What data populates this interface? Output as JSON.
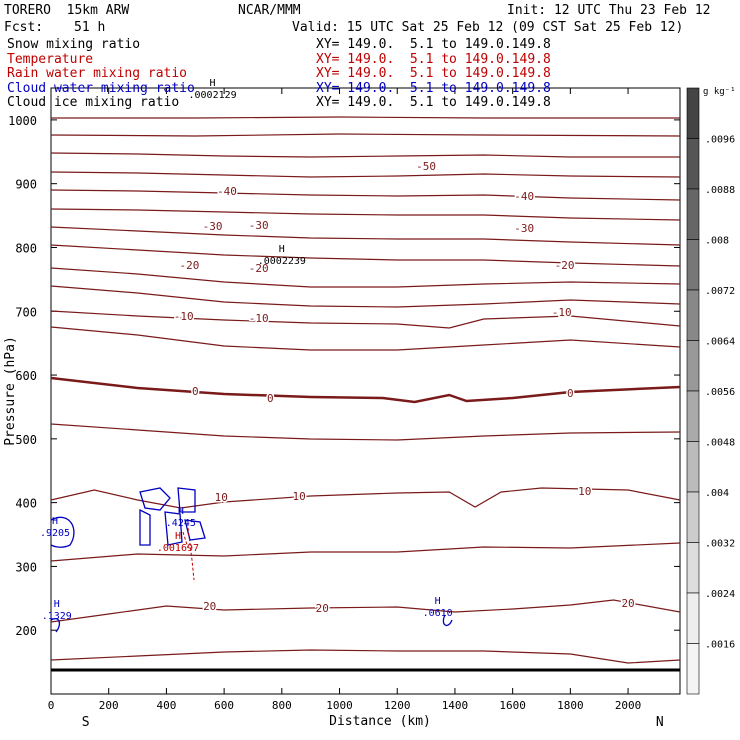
{
  "header": {
    "model": "TORERO  15km ARW",
    "org": "NCAR/MMM",
    "init": "Init: 12 UTC Thu 23 Feb 12",
    "fcst_label": "Fcst:",
    "fcst_value": "51 h",
    "valid": "Valid: 15 UTC Sat 25 Feb 12 (09 CST Sat 25 Feb 12)",
    "fields": [
      {
        "name": "Snow mixing ratio",
        "xy": "XY= 149.0.  5.1 to 149.0.149.8",
        "color": "#000000"
      },
      {
        "name": "Temperature",
        "xy": "XY= 149.0.  5.1 to 149.0.149.8",
        "color": "#c00000"
      },
      {
        "name": "Rain water mixing ratio",
        "xy": "XY= 149.0.  5.1 to 149.0.149.8",
        "color": "#c00000"
      },
      {
        "name": "Cloud water mixing ratio",
        "xy": "XY= 149.0.  5.1 to 149.0.149.8",
        "color": "#0000c0"
      },
      {
        "name": "Cloud ice mixing ratio",
        "xy": "XY= 149.0.  5.1 to 149.0.149.8",
        "color": "#000000"
      }
    ]
  },
  "chart_data": {
    "type": "contour",
    "xlabel": "Distance (km)",
    "ylabel": "Pressure (hPa)",
    "xlim": [
      0,
      2180
    ],
    "ylim": [
      1050,
      100
    ],
    "x_ticks": [
      0,
      200,
      400,
      600,
      800,
      1000,
      1200,
      1400,
      1600,
      1800,
      2000
    ],
    "y_ticks": [
      200,
      300,
      400,
      500,
      600,
      700,
      800,
      900,
      1000
    ],
    "x_end_labels": {
      "left": "S",
      "right": "N"
    },
    "temperature_contours": [
      {
        "value": -60,
        "points": [
          [
            0,
            118
          ],
          [
            500,
            118
          ],
          [
            1000,
            117
          ],
          [
            1500,
            118
          ],
          [
            2180,
            118
          ]
        ]
      },
      {
        "value": -55,
        "points": [
          [
            0,
            135
          ],
          [
            500,
            136
          ],
          [
            1000,
            134
          ],
          [
            1500,
            135
          ],
          [
            2180,
            136
          ]
        ]
      },
      {
        "value": -50,
        "points": [
          [
            0,
            153
          ],
          [
            300,
            154
          ],
          [
            600,
            156
          ],
          [
            900,
            157
          ],
          [
            1200,
            156
          ],
          [
            1500,
            155
          ],
          [
            1800,
            157
          ],
          [
            2180,
            157
          ]
        ]
      },
      {
        "value": -45,
        "points": [
          [
            0,
            172
          ],
          [
            300,
            173
          ],
          [
            600,
            175
          ],
          [
            900,
            177
          ],
          [
            1200,
            176
          ],
          [
            1500,
            174
          ],
          [
            1800,
            176
          ],
          [
            2180,
            177
          ]
        ]
      },
      {
        "value": -40,
        "points": [
          [
            0,
            190
          ],
          [
            300,
            191
          ],
          [
            600,
            193
          ],
          [
            900,
            195
          ],
          [
            1200,
            196
          ],
          [
            1500,
            195
          ],
          [
            1800,
            198
          ],
          [
            2180,
            200
          ]
        ]
      },
      {
        "value": -35,
        "points": [
          [
            0,
            209
          ],
          [
            300,
            210
          ],
          [
            600,
            212
          ],
          [
            900,
            214
          ],
          [
            1200,
            215
          ],
          [
            1500,
            215
          ],
          [
            1800,
            218
          ],
          [
            2180,
            220
          ]
        ]
      },
      {
        "value": -30,
        "points": [
          [
            0,
            227
          ],
          [
            300,
            231
          ],
          [
            600,
            235
          ],
          [
            900,
            238
          ],
          [
            1200,
            239
          ],
          [
            1500,
            239
          ],
          [
            1800,
            242
          ],
          [
            2180,
            245
          ]
        ]
      },
      {
        "value": -25,
        "points": [
          [
            0,
            245
          ],
          [
            300,
            250
          ],
          [
            600,
            255
          ],
          [
            900,
            258
          ],
          [
            1200,
            260
          ],
          [
            1500,
            260
          ],
          [
            1800,
            263
          ],
          [
            2180,
            266
          ]
        ]
      },
      {
        "value": -20,
        "points": [
          [
            0,
            268
          ],
          [
            300,
            274
          ],
          [
            600,
            282
          ],
          [
            900,
            287
          ],
          [
            1200,
            287
          ],
          [
            1500,
            284
          ],
          [
            1800,
            282
          ],
          [
            2180,
            284
          ]
        ]
      },
      {
        "value": -15,
        "points": [
          [
            0,
            286
          ],
          [
            300,
            293
          ],
          [
            600,
            302
          ],
          [
            900,
            306
          ],
          [
            1200,
            307
          ],
          [
            1500,
            304
          ],
          [
            1800,
            300
          ],
          [
            2180,
            304
          ]
        ]
      },
      {
        "value": -10,
        "points": [
          [
            0,
            311
          ],
          [
            300,
            316
          ],
          [
            600,
            320
          ],
          [
            900,
            323
          ],
          [
            1200,
            324
          ],
          [
            1380,
            328
          ],
          [
            1500,
            319
          ],
          [
            1800,
            316
          ],
          [
            2180,
            326
          ]
        ]
      },
      {
        "value": -5,
        "points": [
          [
            0,
            327
          ],
          [
            300,
            335
          ],
          [
            600,
            346
          ],
          [
            900,
            350
          ],
          [
            1200,
            350
          ],
          [
            1500,
            345
          ],
          [
            1800,
            340
          ],
          [
            2180,
            347
          ]
        ]
      },
      {
        "value": 0,
        "points": [
          [
            0,
            378
          ],
          [
            300,
            388
          ],
          [
            600,
            394
          ],
          [
            900,
            397
          ],
          [
            1150,
            398
          ],
          [
            1260,
            402
          ],
          [
            1380,
            395
          ],
          [
            1440,
            401
          ],
          [
            1600,
            398
          ],
          [
            1800,
            392
          ],
          [
            2180,
            387
          ]
        ]
      },
      {
        "value": 5,
        "points": [
          [
            0,
            424
          ],
          [
            300,
            430
          ],
          [
            600,
            436
          ],
          [
            900,
            439
          ],
          [
            1200,
            440
          ],
          [
            1500,
            436
          ],
          [
            1800,
            433
          ],
          [
            2180,
            432
          ]
        ]
      },
      {
        "value": 10,
        "points": [
          [
            0,
            500
          ],
          [
            150,
            490
          ],
          [
            300,
            500
          ],
          [
            450,
            508
          ],
          [
            600,
            502
          ],
          [
            900,
            496
          ],
          [
            1200,
            493
          ],
          [
            1380,
            492
          ],
          [
            1470,
            507
          ],
          [
            1560,
            492
          ],
          [
            1700,
            488
          ],
          [
            2000,
            490
          ],
          [
            2180,
            500
          ]
        ]
      },
      {
        "value": 15,
        "points": [
          [
            0,
            561
          ],
          [
            300,
            554
          ],
          [
            600,
            556
          ],
          [
            900,
            552
          ],
          [
            1200,
            552
          ],
          [
            1500,
            547
          ],
          [
            1800,
            548
          ],
          [
            2180,
            543
          ]
        ]
      },
      {
        "value": 20,
        "points": [
          [
            0,
            622
          ],
          [
            200,
            614
          ],
          [
            400,
            606
          ],
          [
            600,
            610
          ],
          [
            900,
            608
          ],
          [
            1200,
            607
          ],
          [
            1400,
            612
          ],
          [
            1600,
            609
          ],
          [
            1800,
            605
          ],
          [
            1950,
            600
          ],
          [
            2180,
            612
          ]
        ]
      },
      {
        "value": 25,
        "points": [
          [
            0,
            660
          ],
          [
            300,
            656
          ],
          [
            600,
            652
          ],
          [
            900,
            650
          ],
          [
            1200,
            651
          ],
          [
            1500,
            651
          ],
          [
            1800,
            654
          ],
          [
            2000,
            663
          ],
          [
            2180,
            660
          ]
        ]
      }
    ],
    "labeled_contours": [
      {
        "text": "-50",
        "x": 1300,
        "y": 166
      },
      {
        "text": "-40",
        "x": 610,
        "y": 191
      },
      {
        "text": "-40",
        "x": 1640,
        "y": 196
      },
      {
        "text": "-30",
        "x": 560,
        "y": 226
      },
      {
        "text": "-30",
        "x": 720,
        "y": 225
      },
      {
        "text": "-30",
        "x": 1640,
        "y": 228
      },
      {
        "text": "-20",
        "x": 480,
        "y": 265
      },
      {
        "text": "-20",
        "x": 720,
        "y": 268
      },
      {
        "text": "-20",
        "x": 1780,
        "y": 265
      },
      {
        "text": "-10",
        "x": 460,
        "y": 316
      },
      {
        "text": "-10",
        "x": 720,
        "y": 318
      },
      {
        "text": "-10",
        "x": 1770,
        "y": 312
      },
      {
        "text": "0",
        "x": 500,
        "y": 391
      },
      {
        "text": "0",
        "x": 760,
        "y": 398
      },
      {
        "text": "0",
        "x": 1800,
        "y": 393
      },
      {
        "text": "10",
        "x": 590,
        "y": 497
      },
      {
        "text": "10",
        "x": 860,
        "y": 496
      },
      {
        "text": "10",
        "x": 1850,
        "y": 491
      },
      {
        "text": "20",
        "x": 550,
        "y": 606
      },
      {
        "text": "20",
        "x": 940,
        "y": 608
      },
      {
        "text": "20",
        "x": 2000,
        "y": 603
      }
    ],
    "maxima_labels": [
      {
        "field": "snow",
        "text": "H",
        "value": ".0002239",
        "x": 800,
        "y": 258,
        "color": "#000000"
      },
      {
        "field": "cloud_ice",
        "text": "H",
        "value": ".0002129",
        "x": 560,
        "y": 92,
        "color": "#000000"
      },
      {
        "field": "rain",
        "text": "H",
        "value": ".001697",
        "x": 440,
        "y": 545,
        "color": "#c00000"
      },
      {
        "field": "cloud_water",
        "text": "H",
        "value": ".4245",
        "x": 450,
        "y": 520,
        "color": "#0000c0"
      },
      {
        "field": "cloud_water",
        "text": "H",
        "value": ".9205",
        "x": 0,
        "y": 530,
        "color": "#0000c0"
      },
      {
        "field": "cloud_water",
        "text": "H",
        "value": ".1329",
        "x": 20,
        "y": 613,
        "color": "#0000c0"
      },
      {
        "field": "cloud_water",
        "text": "H",
        "value": ".0610",
        "x": 1340,
        "y": 610,
        "color": "#0000c0"
      }
    ],
    "colorbar": {
      "unit": "g kg⁻¹",
      "labels": [
        ".0096",
        ".0088",
        ".008",
        ".0072",
        ".0064",
        ".0056",
        ".0048",
        ".004",
        ".0032",
        ".0024",
        ".0016"
      ]
    }
  }
}
